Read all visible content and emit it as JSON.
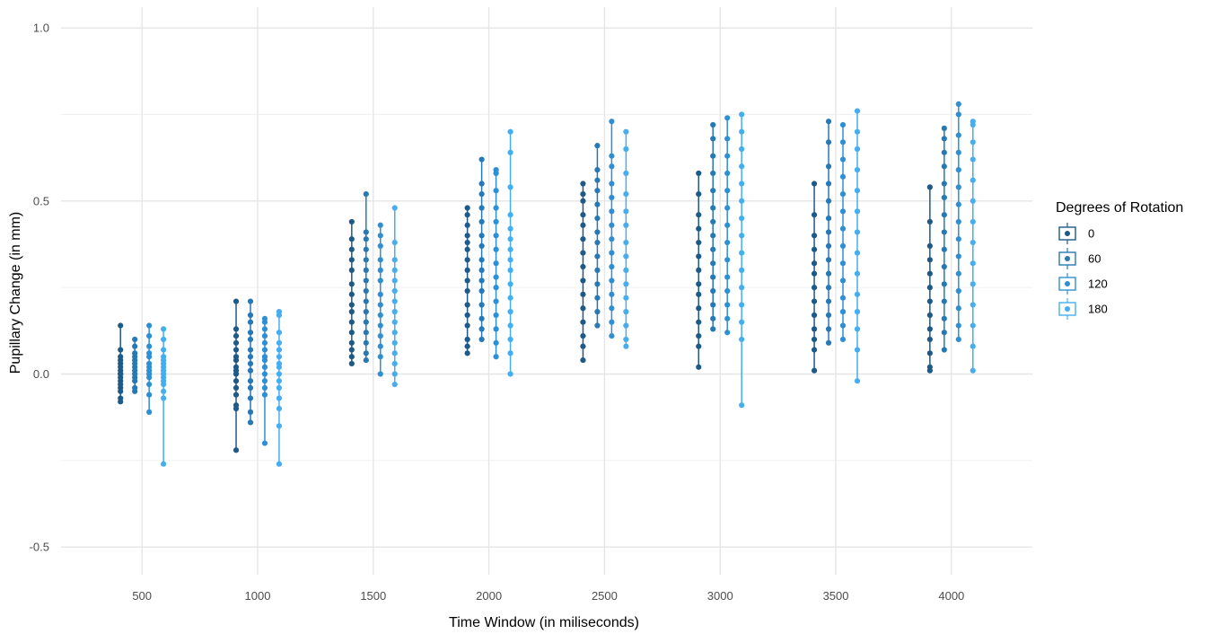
{
  "chart_data": {
    "type": "scatter",
    "xlabel": "Time Window (in miliseconds)",
    "ylabel": "Pupillary Change (in mm)",
    "xlim": [
      150,
      4350
    ],
    "ylim": [
      -0.58,
      1.06
    ],
    "x_ticks": [
      500,
      1000,
      1500,
      2000,
      2500,
      3000,
      3500,
      4000
    ],
    "x_tick_labels": [
      "500",
      "1000",
      "1500",
      "2000",
      "2500",
      "3000",
      "3500",
      "4000"
    ],
    "y_ticks": [
      -0.5,
      0.0,
      0.5,
      1.0
    ],
    "y_tick_labels": [
      "-0.5",
      "0.0",
      "0.5",
      "1.0"
    ],
    "y_minor_ticks": [
      -0.25,
      0.25,
      0.75
    ],
    "grid": true,
    "dodge": 62,
    "legend": {
      "title": "Degrees of Rotation",
      "position": "right",
      "entries": [
        "0",
        "60",
        "120",
        "180"
      ]
    },
    "series": [
      {
        "name": "0",
        "color": "#1d5a87",
        "points": [
          [
            500,
            [
              -0.08,
              -0.07,
              -0.05,
              -0.04,
              -0.03,
              -0.02,
              -0.01,
              0.0,
              0.0,
              0.01,
              0.02,
              0.03,
              0.04,
              0.05,
              0.07,
              0.14
            ]
          ],
          [
            1000,
            [
              -0.22,
              -0.1,
              -0.09,
              -0.06,
              -0.04,
              -0.02,
              0.0,
              0.01,
              0.02,
              0.04,
              0.05,
              0.07,
              0.09,
              0.11,
              0.13,
              0.21
            ]
          ],
          [
            1500,
            [
              0.03,
              0.05,
              0.07,
              0.09,
              0.12,
              0.15,
              0.18,
              0.2,
              0.23,
              0.26,
              0.3,
              0.33,
              0.36,
              0.39,
              0.44
            ]
          ],
          [
            2000,
            [
              0.06,
              0.08,
              0.1,
              0.14,
              0.17,
              0.2,
              0.24,
              0.27,
              0.3,
              0.33,
              0.36,
              0.38,
              0.4,
              0.43,
              0.46,
              0.48
            ]
          ],
          [
            2500,
            [
              0.04,
              0.08,
              0.11,
              0.15,
              0.19,
              0.23,
              0.27,
              0.31,
              0.35,
              0.39,
              0.43,
              0.46,
              0.5,
              0.52,
              0.55
            ]
          ],
          [
            3000,
            [
              0.02,
              0.08,
              0.11,
              0.15,
              0.19,
              0.23,
              0.26,
              0.3,
              0.34,
              0.38,
              0.42,
              0.46,
              0.52,
              0.58
            ]
          ],
          [
            3500,
            [
              0.01,
              0.07,
              0.1,
              0.13,
              0.17,
              0.21,
              0.25,
              0.29,
              0.32,
              0.36,
              0.4,
              0.46,
              0.55
            ]
          ],
          [
            4000,
            [
              0.01,
              0.02,
              0.06,
              0.1,
              0.13,
              0.17,
              0.21,
              0.25,
              0.29,
              0.33,
              0.37,
              0.44,
              0.54
            ]
          ]
        ]
      },
      {
        "name": "60",
        "color": "#2679b4",
        "points": [
          [
            500,
            [
              -0.05,
              -0.04,
              -0.02,
              -0.01,
              0.0,
              0.01,
              0.02,
              0.03,
              0.04,
              0.05,
              0.06,
              0.08,
              0.1
            ]
          ],
          [
            1000,
            [
              -0.14,
              -0.11,
              -0.07,
              -0.04,
              -0.02,
              0.01,
              0.03,
              0.05,
              0.07,
              0.1,
              0.12,
              0.15,
              0.17,
              0.21
            ]
          ],
          [
            1500,
            [
              0.04,
              0.06,
              0.09,
              0.12,
              0.15,
              0.18,
              0.21,
              0.24,
              0.27,
              0.3,
              0.33,
              0.36,
              0.39,
              0.41,
              0.52
            ]
          ],
          [
            2000,
            [
              0.1,
              0.13,
              0.16,
              0.2,
              0.24,
              0.27,
              0.3,
              0.33,
              0.37,
              0.4,
              0.44,
              0.48,
              0.52,
              0.55,
              0.62
            ]
          ],
          [
            2500,
            [
              0.14,
              0.18,
              0.22,
              0.26,
              0.3,
              0.34,
              0.38,
              0.41,
              0.45,
              0.49,
              0.53,
              0.56,
              0.59,
              0.66
            ]
          ],
          [
            3000,
            [
              0.13,
              0.16,
              0.2,
              0.24,
              0.28,
              0.32,
              0.36,
              0.4,
              0.44,
              0.48,
              0.53,
              0.58,
              0.63,
              0.68,
              0.72
            ]
          ],
          [
            3500,
            [
              0.09,
              0.13,
              0.17,
              0.21,
              0.25,
              0.29,
              0.33,
              0.37,
              0.41,
              0.45,
              0.5,
              0.55,
              0.6,
              0.67,
              0.73
            ]
          ],
          [
            4000,
            [
              0.07,
              0.12,
              0.16,
              0.21,
              0.26,
              0.31,
              0.36,
              0.41,
              0.46,
              0.51,
              0.55,
              0.6,
              0.64,
              0.68,
              0.71
            ]
          ]
        ]
      },
      {
        "name": "120",
        "color": "#2f8fd5",
        "points": [
          [
            500,
            [
              -0.11,
              -0.06,
              -0.03,
              -0.01,
              0.0,
              0.01,
              0.02,
              0.03,
              0.05,
              0.06,
              0.08,
              0.11,
              0.14
            ]
          ],
          [
            1000,
            [
              -0.2,
              -0.06,
              -0.04,
              -0.02,
              0.0,
              0.02,
              0.04,
              0.05,
              0.07,
              0.09,
              0.11,
              0.13,
              0.15,
              0.16
            ]
          ],
          [
            1500,
            [
              0.0,
              0.05,
              0.08,
              0.11,
              0.14,
              0.17,
              0.2,
              0.23,
              0.27,
              0.3,
              0.33,
              0.37,
              0.4,
              0.43
            ]
          ],
          [
            2000,
            [
              0.05,
              0.09,
              0.13,
              0.17,
              0.21,
              0.25,
              0.28,
              0.32,
              0.36,
              0.4,
              0.44,
              0.48,
              0.53,
              0.58,
              0.59
            ]
          ],
          [
            2500,
            [
              0.11,
              0.15,
              0.19,
              0.23,
              0.27,
              0.31,
              0.35,
              0.39,
              0.43,
              0.47,
              0.51,
              0.55,
              0.6,
              0.63,
              0.73
            ]
          ],
          [
            3000,
            [
              0.12,
              0.16,
              0.2,
              0.24,
              0.28,
              0.33,
              0.38,
              0.43,
              0.48,
              0.53,
              0.58,
              0.63,
              0.68,
              0.74
            ]
          ],
          [
            3500,
            [
              0.1,
              0.14,
              0.18,
              0.22,
              0.27,
              0.32,
              0.37,
              0.42,
              0.47,
              0.52,
              0.57,
              0.62,
              0.67,
              0.72
            ]
          ],
          [
            4000,
            [
              0.1,
              0.14,
              0.19,
              0.24,
              0.29,
              0.34,
              0.39,
              0.44,
              0.49,
              0.54,
              0.59,
              0.64,
              0.69,
              0.75,
              0.78
            ]
          ]
        ]
      },
      {
        "name": "180",
        "color": "#45aef0",
        "points": [
          [
            500,
            [
              -0.26,
              -0.07,
              -0.05,
              -0.03,
              -0.02,
              -0.01,
              0.0,
              0.01,
              0.02,
              0.03,
              0.04,
              0.05,
              0.07,
              0.1,
              0.13
            ]
          ],
          [
            1000,
            [
              -0.26,
              -0.15,
              -0.1,
              -0.07,
              -0.04,
              -0.02,
              0.0,
              0.02,
              0.03,
              0.05,
              0.07,
              0.09,
              0.12,
              0.17,
              0.18
            ]
          ],
          [
            1500,
            [
              -0.03,
              0.0,
              0.03,
              0.06,
              0.09,
              0.12,
              0.15,
              0.18,
              0.21,
              0.24,
              0.27,
              0.3,
              0.33,
              0.38,
              0.48
            ]
          ],
          [
            2000,
            [
              0.0,
              0.06,
              0.1,
              0.14,
              0.18,
              0.22,
              0.26,
              0.3,
              0.33,
              0.36,
              0.39,
              0.42,
              0.46,
              0.54,
              0.64,
              0.7
            ]
          ],
          [
            2500,
            [
              0.08,
              0.1,
              0.14,
              0.18,
              0.22,
              0.26,
              0.3,
              0.34,
              0.38,
              0.43,
              0.47,
              0.52,
              0.58,
              0.65,
              0.7
            ]
          ],
          [
            3000,
            [
              -0.09,
              0.1,
              0.15,
              0.2,
              0.25,
              0.3,
              0.35,
              0.4,
              0.45,
              0.5,
              0.55,
              0.6,
              0.65,
              0.7,
              0.75
            ]
          ],
          [
            3500,
            [
              -0.02,
              0.07,
              0.13,
              0.18,
              0.23,
              0.29,
              0.35,
              0.41,
              0.47,
              0.53,
              0.59,
              0.65,
              0.7,
              0.76
            ]
          ],
          [
            4000,
            [
              0.01,
              0.08,
              0.14,
              0.2,
              0.26,
              0.32,
              0.38,
              0.44,
              0.5,
              0.56,
              0.62,
              0.67,
              0.72,
              0.73
            ]
          ]
        ]
      }
    ]
  }
}
